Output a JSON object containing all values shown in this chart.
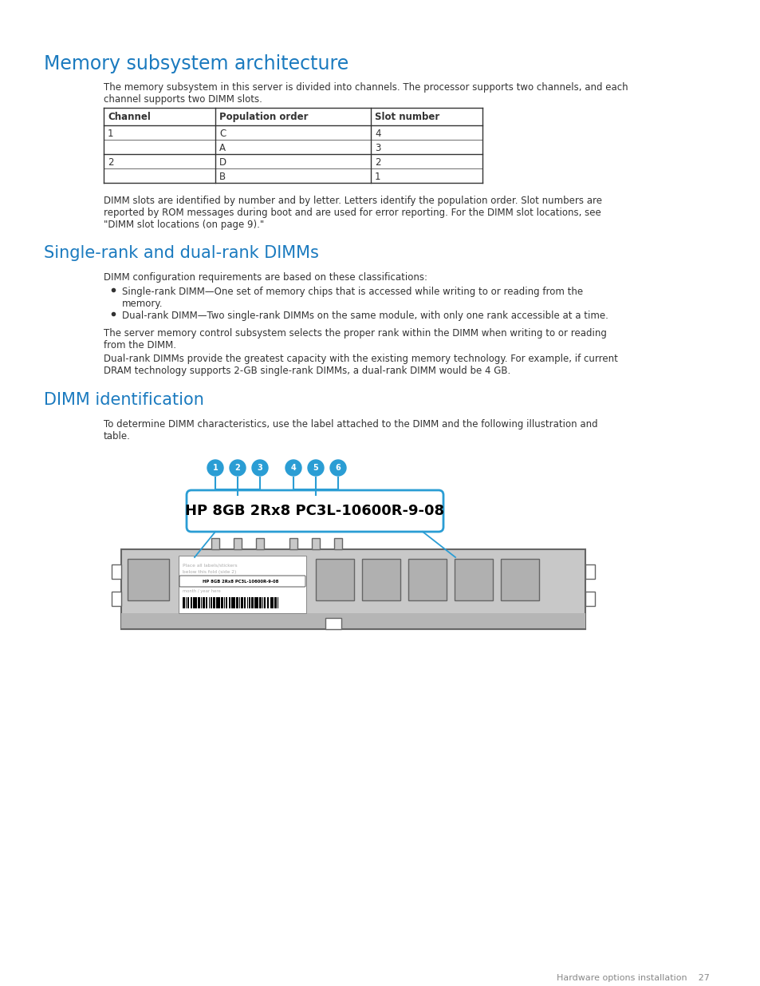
{
  "title1": "Memory subsystem architecture",
  "title2": "Single-rank and dual-rank DIMMs",
  "title3": "DIMM identification",
  "heading_color": "#1a7abf",
  "text_color": "#333333",
  "bg_color": "#ffffff",
  "body_font_size": 8.5,
  "heading1_font_size": 17,
  "heading2_font_size": 15,
  "para1": "The memory subsystem in this server is divided into channels. The processor supports two channels, and each\nchannel supports two DIMM slots.",
  "table_headers": [
    "Channel",
    "Population order",
    "Slot number"
  ],
  "table_data": [
    [
      "1",
      "C",
      "4"
    ],
    [
      "",
      "A",
      "3"
    ],
    [
      "2",
      "D",
      "2"
    ],
    [
      "",
      "B",
      "1"
    ]
  ],
  "para2": "DIMM slots are identified by number and by letter. Letters identify the population order. Slot numbers are\nreported by ROM messages during boot and are used for error reporting. For the DIMM slot locations, see\n\"DIMM slot locations (on page 9).\"",
  "para3": "DIMM configuration requirements are based on these classifications:",
  "bullet1": "Single-rank DIMM—One set of memory chips that is accessed while writing to or reading from the\nmemory.",
  "bullet2": "Dual-rank DIMM—Two single-rank DIMMs on the same module, with only one rank accessible at a time.",
  "para4": "The server memory control subsystem selects the proper rank within the DIMM when writing to or reading\nfrom the DIMM.",
  "para5": "Dual-rank DIMMs provide the greatest capacity with the existing memory technology. For example, if current\nDRAM technology supports 2-GB single-rank DIMMs, a dual-rank DIMM would be 4 GB.",
  "para6": "To determine DIMM characteristics, use the label attached to the DIMM and the following illustration and\ntable.",
  "dimm_label": "HP 8GB 2Rx8 PC3L-10600R-9-08",
  "footer_text": "Hardware options installation    27",
  "dimm_color": "#c8c8c8",
  "dimm_border": "#666666",
  "callout_color": "#2a9dd4",
  "numbered_circles": [
    "1",
    "2",
    "3",
    "4",
    "5",
    "6"
  ]
}
